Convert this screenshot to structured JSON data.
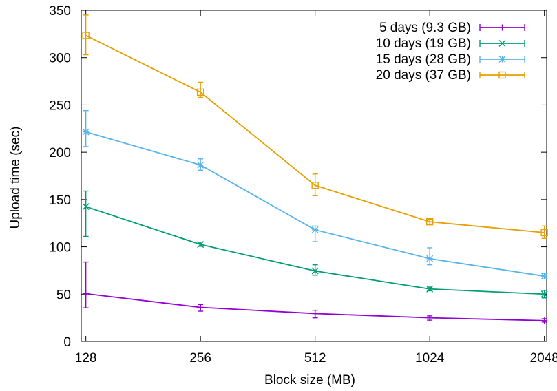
{
  "chart_data": {
    "type": "line",
    "title": "",
    "xlabel": "Block size (MB)",
    "ylabel": "Upload time (sec)",
    "categories": [
      "128",
      "256",
      "512",
      "1024",
      "2048"
    ],
    "x": [
      128,
      256,
      512,
      1024,
      2048
    ],
    "x_scale": "log2",
    "ylim": [
      0,
      350
    ],
    "y_ticks": [
      0,
      50,
      100,
      150,
      200,
      250,
      300,
      350
    ],
    "y_tick_labels": [
      "0",
      "50",
      "100",
      "150",
      "200",
      "250",
      "300",
      "350"
    ],
    "grid": false,
    "legend_position": "top-right",
    "series": [
      {
        "name": "5 days (9.3 GB)",
        "color": "#9400d3",
        "marker": "plus",
        "values": [
          50.5,
          36,
          29.5,
          25,
          22
        ],
        "err_low": [
          35.5,
          32,
          25,
          22.5,
          20.5
        ],
        "err_high": [
          84,
          39,
          33,
          27,
          24
        ]
      },
      {
        "name": "10 days (19 GB)",
        "color": "#009e73",
        "marker": "cross",
        "values": [
          142.5,
          102.5,
          74.5,
          55.5,
          50
        ],
        "err_low": [
          111,
          100.5,
          70,
          53.5,
          46
        ],
        "err_high": [
          159,
          105,
          81,
          57.5,
          54
        ]
      },
      {
        "name": "15 days (28 GB)",
        "color": "#56b4e9",
        "marker": "star",
        "values": [
          221.5,
          186.5,
          118,
          87.5,
          69
        ],
        "err_low": [
          206,
          181,
          105.5,
          81,
          66
        ],
        "err_high": [
          244,
          193,
          122,
          99,
          72
        ]
      },
      {
        "name": "20 days (37 GB)",
        "color": "#e69f00",
        "marker": "square",
        "values": [
          323.5,
          263.5,
          165,
          126.5,
          115
        ],
        "err_low": [
          303,
          258,
          154,
          124,
          109
        ],
        "err_high": [
          345,
          274,
          177,
          129,
          122
        ]
      }
    ]
  }
}
